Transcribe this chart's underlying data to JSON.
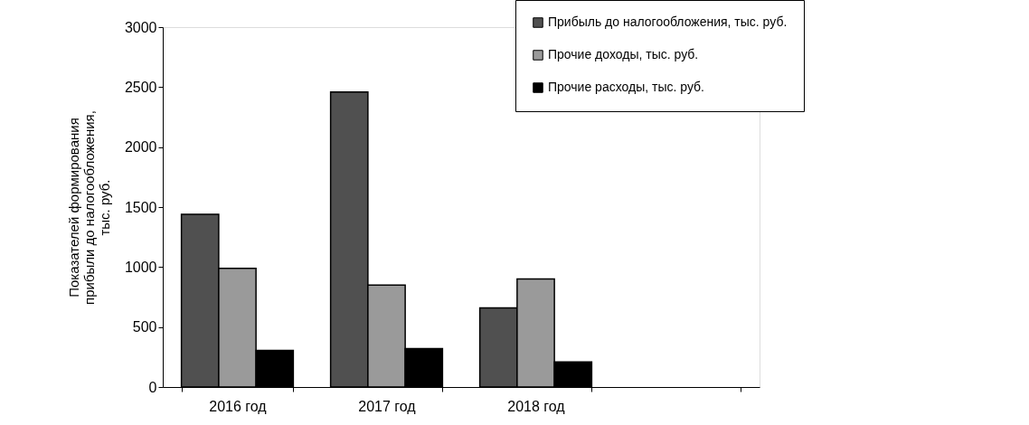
{
  "chart_data": {
    "type": "bar",
    "ylabel": [
      "Показателей формирования",
      "прибыли до налогообложения,",
      "тыс. руб."
    ],
    "categories": [
      "2016 год",
      "2017 год",
      "2018 год",
      null
    ],
    "series": [
      {
        "name": "Прибыль до налогообложения, тыс. руб.",
        "color": "#505050",
        "values": [
          1440,
          2460,
          660,
          null
        ]
      },
      {
        "name": "Прочие доходы, тыс. руб.",
        "color": "#9a9a9a",
        "values": [
          990,
          850,
          900,
          null
        ]
      },
      {
        "name": "Прочие расходы, тыс. руб.",
        "color": "#000000",
        "values": [
          305,
          320,
          210,
          null
        ]
      }
    ],
    "ylim": [
      0,
      3000
    ],
    "yticks": [
      0,
      500,
      1000,
      1500,
      2000,
      2500,
      3000
    ],
    "grid": false,
    "legend": "top right"
  }
}
